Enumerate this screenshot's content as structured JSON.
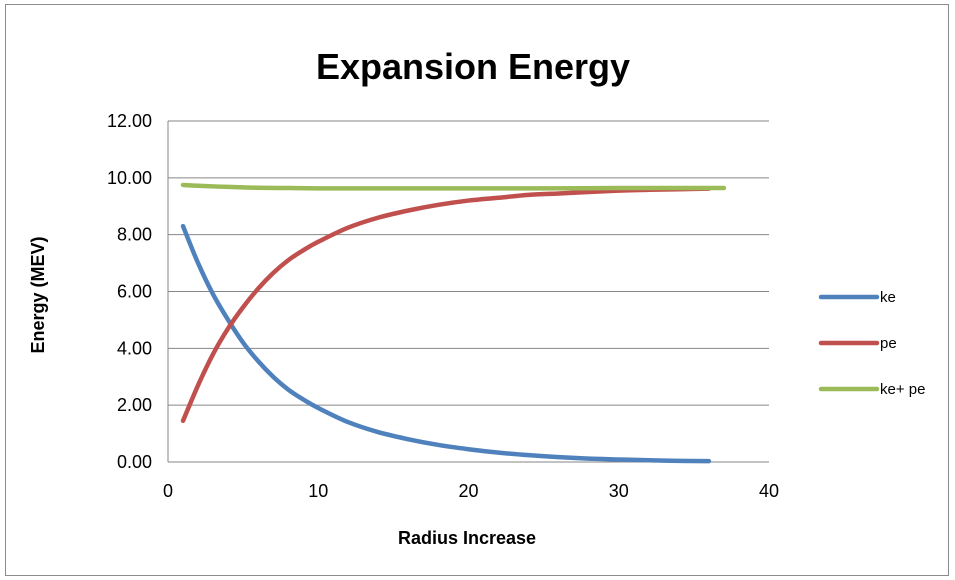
{
  "chart_data": {
    "type": "line",
    "title": "Expansion Energy",
    "xlabel": "Radius Increase",
    "ylabel": "Energy (MEV)",
    "xlim": [
      0,
      40
    ],
    "ylim": [
      0,
      12
    ],
    "x_ticks": [
      "0",
      "10",
      "20",
      "30",
      "40"
    ],
    "y_ticks": [
      "0.00",
      "2.00",
      "4.00",
      "6.00",
      "8.00",
      "10.00",
      "12.00"
    ],
    "grid": "horizontal",
    "legend_position": "right",
    "series": [
      {
        "name": "ke",
        "color": "#4f81bd",
        "x": [
          1,
          2,
          3,
          4,
          5,
          6,
          7,
          8,
          9,
          10,
          12,
          14,
          16,
          18,
          20,
          22,
          24,
          26,
          28,
          30,
          32,
          34,
          36
        ],
        "y": [
          8.3,
          7.0,
          5.9,
          5.0,
          4.2,
          3.55,
          3.0,
          2.55,
          2.2,
          1.9,
          1.4,
          1.05,
          0.8,
          0.6,
          0.45,
          0.33,
          0.24,
          0.17,
          0.12,
          0.09,
          0.06,
          0.04,
          0.03
        ]
      },
      {
        "name": "pe",
        "color": "#c0504d",
        "x": [
          1,
          2,
          3,
          4,
          5,
          6,
          7,
          8,
          9,
          10,
          12,
          14,
          16,
          18,
          20,
          22,
          24,
          26,
          28,
          30,
          32,
          34,
          36
        ],
        "y": [
          1.45,
          2.7,
          3.8,
          4.7,
          5.45,
          6.1,
          6.65,
          7.1,
          7.45,
          7.75,
          8.25,
          8.6,
          8.85,
          9.05,
          9.2,
          9.3,
          9.4,
          9.45,
          9.5,
          9.55,
          9.58,
          9.6,
          9.62
        ]
      },
      {
        "name": "ke+ pe",
        "color": "#9bbb59",
        "x": [
          1,
          2,
          4,
          6,
          8,
          10,
          15,
          20,
          25,
          30,
          35,
          37
        ],
        "y": [
          9.75,
          9.72,
          9.68,
          9.65,
          9.64,
          9.63,
          9.63,
          9.63,
          9.63,
          9.64,
          9.64,
          9.64
        ]
      }
    ]
  }
}
